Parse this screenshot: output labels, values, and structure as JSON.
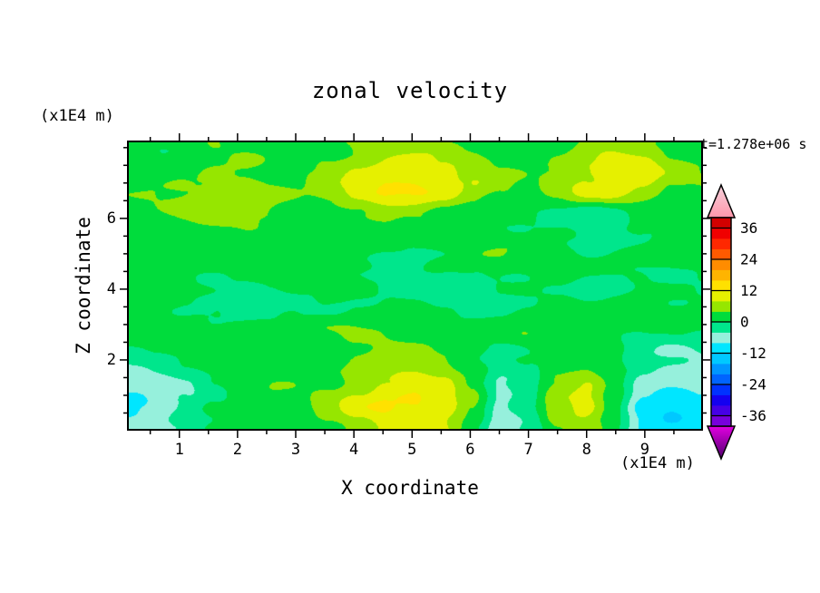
{
  "chart_data": {
    "type": "heatmap",
    "title": "zonal velocity",
    "time_label": "t=1.278e+06 s",
    "xlabel": "X coordinate",
    "ylabel": "Z coordinate",
    "x_unit": "(x1E4 m)",
    "y_unit": "(x1E4 m)",
    "xlim": [
      0.1,
      10.0
    ],
    "ylim": [
      0.0,
      8.2
    ],
    "x_ticks": [
      1,
      2,
      3,
      4,
      5,
      6,
      7,
      8,
      9
    ],
    "y_ticks": [
      2,
      4,
      6
    ],
    "minor_tick_step": 0.5,
    "colorbar": {
      "value_min": -40,
      "value_max": 40,
      "band_step": 4,
      "tick_values": [
        36,
        24,
        12,
        0,
        -12,
        -24,
        -36
      ],
      "tick_labels": [
        "36",
        "24",
        "12",
        "0",
        "-12",
        "-24",
        "-36"
      ],
      "band_colors": [
        "#7800DC",
        "#4600E6",
        "#1400F0",
        "#0032FF",
        "#0064FF",
        "#0096FF",
        "#00C8FF",
        "#00E6FF",
        "#96F0DC",
        "#00E68C",
        "#00DC3C",
        "#96E600",
        "#E6F000",
        "#FFE100",
        "#FFB400",
        "#FF8C00",
        "#FF5A00",
        "#FF2800",
        "#F00000",
        "#D20000"
      ],
      "under_arrow_colors": [
        "#E100E1",
        "#50006E"
      ],
      "over_arrow_colors": [
        "#F5D2DC",
        "#FF96AA"
      ]
    },
    "grid": {
      "nx": 21,
      "ny": 13,
      "x_start": 0.1,
      "x_end": 10.0,
      "y_start": 0.0,
      "y_end": 8.2,
      "values_rows_bottom_to_top": [
        [
          -7,
          -6,
          -3,
          0,
          2,
          2,
          1,
          3,
          6,
          8,
          9,
          8,
          3,
          -5,
          -2,
          4,
          6,
          1,
          -7,
          -9,
          -8
        ],
        [
          -10,
          -8,
          -4,
          0,
          2,
          3,
          2,
          5,
          9,
          12,
          13,
          11,
          4,
          -7,
          -3,
          7,
          10,
          2,
          -10,
          -13,
          -11
        ],
        [
          -6,
          -4,
          -2,
          1,
          2,
          3,
          3,
          4,
          7,
          9,
          10,
          8,
          3,
          -4,
          -1,
          5,
          7,
          1,
          -6,
          -8,
          -7
        ],
        [
          -2,
          -1,
          0,
          1,
          2,
          2,
          2,
          3,
          4,
          5,
          5,
          4,
          2,
          0,
          1,
          2,
          3,
          1,
          -2,
          -3,
          -3
        ],
        [
          1,
          2,
          2,
          1,
          2,
          3,
          2,
          2,
          3,
          3,
          2,
          2,
          1,
          1,
          2,
          2,
          2,
          1,
          0,
          -1,
          -1
        ],
        [
          2,
          3,
          2,
          1,
          -1,
          -2,
          -1,
          1,
          2,
          2,
          1,
          -1,
          -2,
          -1,
          1,
          2,
          1,
          1,
          1,
          0,
          0
        ],
        [
          1,
          1,
          -1,
          -2,
          -1,
          1,
          2,
          2,
          1,
          -1,
          -2,
          -2,
          -1,
          1,
          1,
          1,
          -1,
          -1,
          1,
          1,
          1
        ],
        [
          2,
          2,
          1,
          1,
          2,
          2,
          1,
          1,
          -1,
          -2,
          -1,
          1,
          2,
          2,
          1,
          1,
          1,
          2,
          2,
          1,
          1
        ],
        [
          1,
          2,
          3,
          3,
          2,
          1,
          1,
          2,
          3,
          3,
          2,
          1,
          1,
          2,
          2,
          1,
          -1,
          -2,
          -1,
          1,
          1
        ],
        [
          2,
          3,
          4,
          6,
          6,
          5,
          3,
          2,
          3,
          5,
          5,
          4,
          2,
          1,
          1,
          -1,
          -2,
          -1,
          2,
          3,
          2
        ],
        [
          2,
          3,
          4,
          5,
          5,
          4,
          3,
          5,
          9,
          12,
          12,
          10,
          7,
          4,
          2,
          5,
          9,
          11,
          8,
          4,
          3
        ],
        [
          1,
          2,
          3,
          5,
          5,
          3,
          3,
          5,
          8,
          10,
          10,
          8,
          6,
          3,
          2,
          5,
          8,
          10,
          9,
          5,
          3
        ],
        [
          1,
          1,
          2,
          3,
          3,
          2,
          2,
          3,
          5,
          6,
          6,
          5,
          4,
          2,
          2,
          3,
          5,
          6,
          5,
          3,
          2
        ]
      ]
    }
  }
}
